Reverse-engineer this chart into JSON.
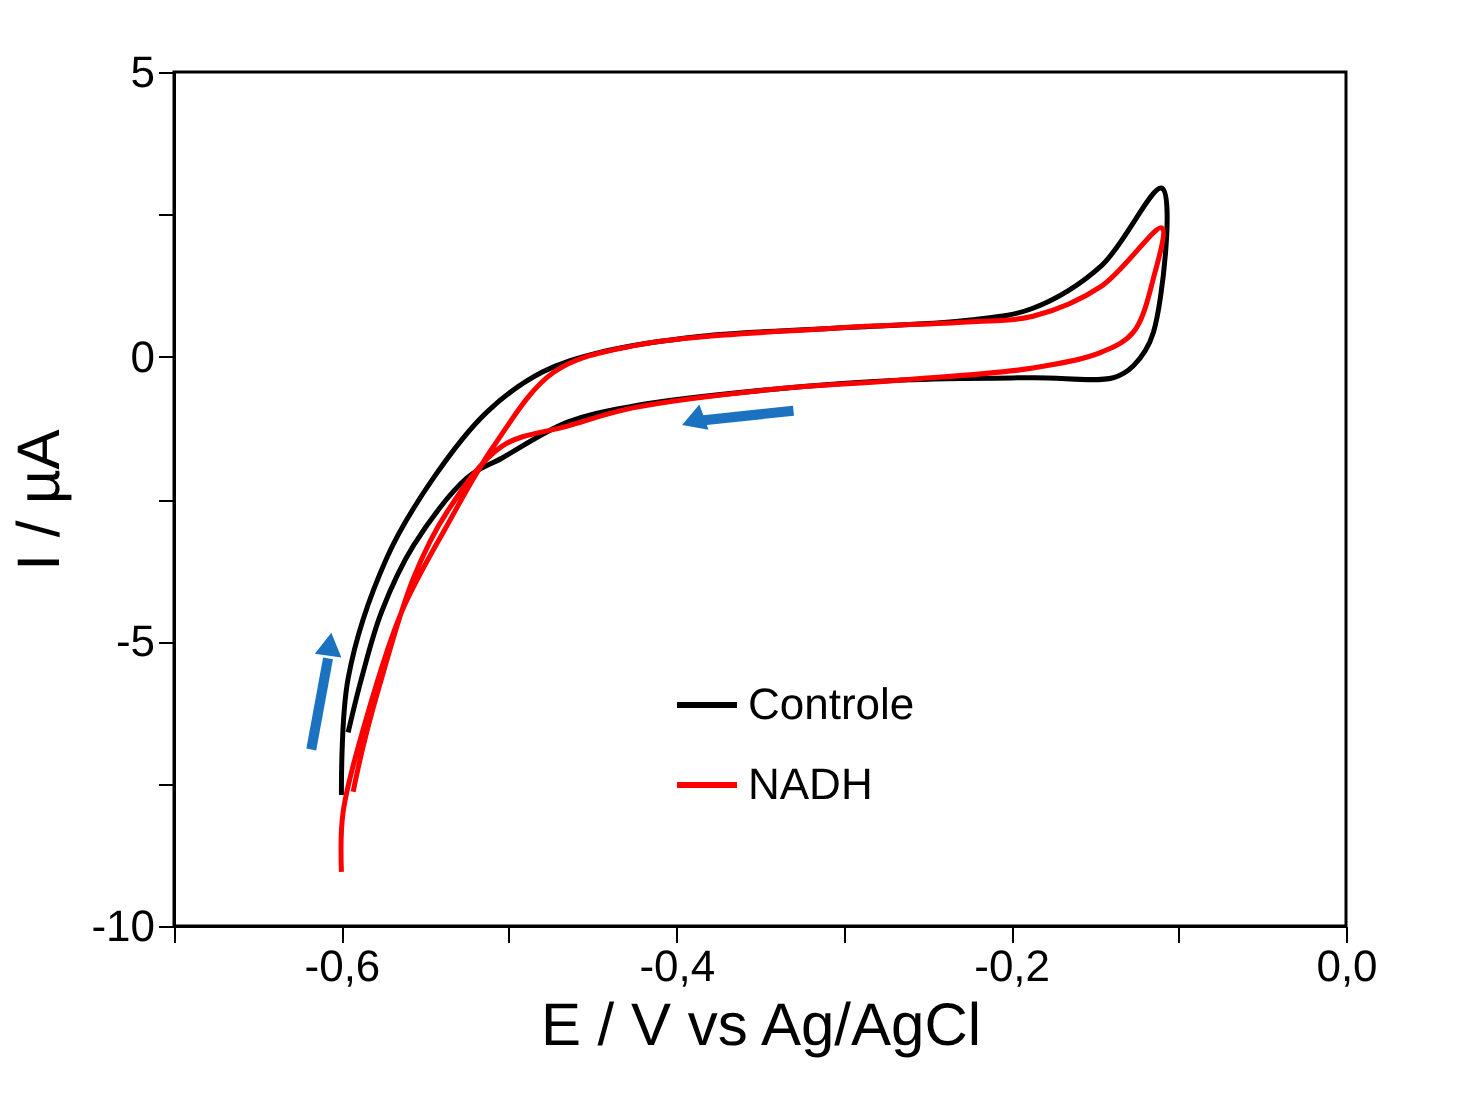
{
  "chart_data": {
    "type": "line",
    "xlabel": "E / V vs Ag/AgCl",
    "ylabel": "I / µA",
    "xlim": [
      -0.7,
      0.0
    ],
    "ylim": [
      -10,
      5
    ],
    "xticks": [
      {
        "value": -0.7,
        "label": null
      },
      {
        "value": -0.6,
        "label": "-0,6"
      },
      {
        "value": -0.5,
        "label": null
      },
      {
        "value": -0.4,
        "label": "-0,4"
      },
      {
        "value": -0.3,
        "label": null
      },
      {
        "value": -0.2,
        "label": "-0,2"
      },
      {
        "value": -0.1,
        "label": null
      },
      {
        "value": 0.0,
        "label": "0,0"
      }
    ],
    "yticks": [
      -10,
      {
        "value": -7.5,
        "label": null
      },
      -5,
      {
        "value": -2.5,
        "label": null
      },
      0,
      {
        "value": 2.5,
        "label": null
      },
      5
    ],
    "grid": false,
    "legend": "bottom right",
    "marker": "none",
    "line_style": "solid",
    "series": [
      {
        "name": "Controle",
        "color": "#000000",
        "x": [
          -0.596,
          -0.588,
          -0.576,
          -0.557,
          -0.525,
          -0.504,
          -0.465,
          -0.426,
          -0.345,
          -0.265,
          -0.187,
          -0.139,
          -0.127,
          -0.115,
          -0.11,
          -0.146,
          -0.187,
          -0.226,
          -0.306,
          -0.385,
          -0.445,
          -0.48,
          -0.513,
          -0.545,
          -0.573,
          -0.596,
          -0.6
        ],
        "values": [
          -6.6,
          -5.65,
          -4.48,
          -3.32,
          -2.13,
          -1.78,
          -1.15,
          -0.87,
          -0.58,
          -0.41,
          -0.37,
          -0.37,
          -0.16,
          0.43,
          2.96,
          1.6,
          0.85,
          0.64,
          0.5,
          0.36,
          0.08,
          -0.27,
          -0.97,
          -2.13,
          -3.54,
          -5.65,
          -7.7
        ]
      },
      {
        "name": "NADH",
        "color": "#ff0000",
        "x": [
          -0.593,
          -0.587,
          -0.576,
          -0.557,
          -0.537,
          -0.504,
          -0.465,
          -0.426,
          -0.345,
          -0.265,
          -0.187,
          -0.146,
          -0.127,
          -0.115,
          -0.11,
          -0.146,
          -0.187,
          -0.226,
          -0.306,
          -0.426,
          -0.473,
          -0.509,
          -0.537,
          -0.564,
          -0.584,
          -0.599,
          -0.6
        ],
        "values": [
          -7.64,
          -6.84,
          -5.65,
          -3.89,
          -2.73,
          -1.57,
          -1.22,
          -0.9,
          -0.58,
          -0.41,
          -0.2,
          0.08,
          0.43,
          1.38,
          2.26,
          1.24,
          0.71,
          0.61,
          0.5,
          0.19,
          -0.27,
          -1.57,
          -2.97,
          -4.48,
          -6.24,
          -8.0,
          -9.05
        ]
      }
    ]
  }
}
